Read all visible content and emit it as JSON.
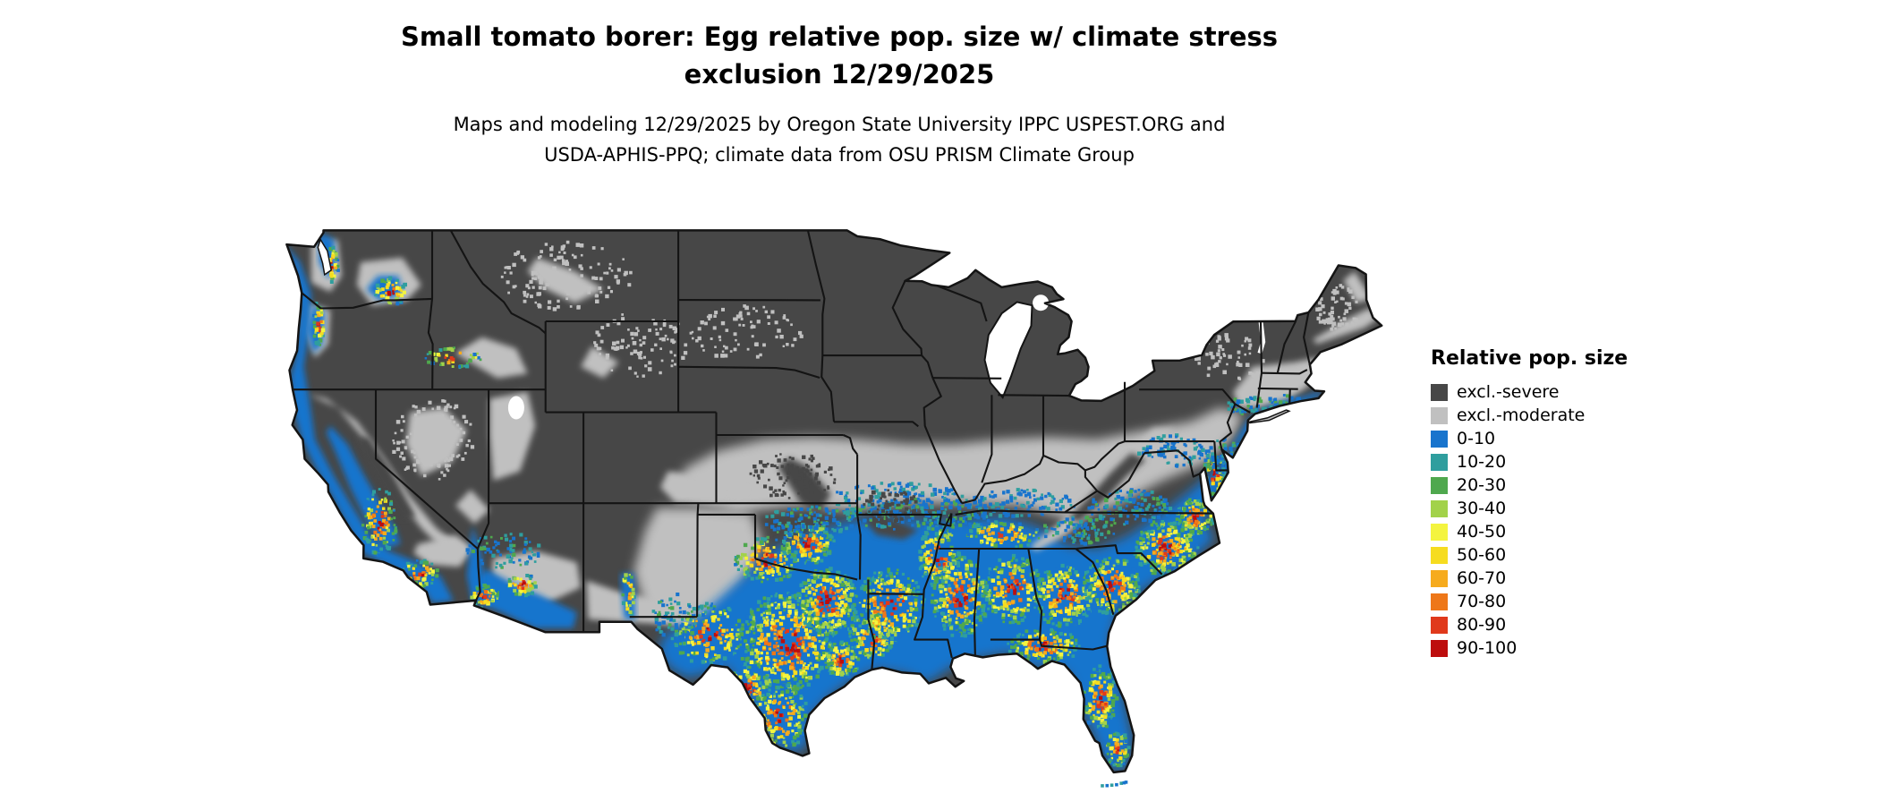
{
  "title": {
    "line1": "Small tomato borer: Egg relative pop. size w/ climate stress",
    "line2": "exclusion 12/29/2025"
  },
  "subtitle": {
    "line1": "Maps and modeling 12/29/2025 by Oregon State University IPPC USPEST.ORG and",
    "line2": "USDA-APHIS-PPQ; climate data from OSU PRISM Climate Group"
  },
  "legend": {
    "title": "Relative pop. size",
    "items": [
      {
        "label": "excl.-severe",
        "color": "#474747"
      },
      {
        "label": "excl.-moderate",
        "color": "#c0c0c0"
      },
      {
        "label": "0-10",
        "color": "#1874cd"
      },
      {
        "label": "10-20",
        "color": "#2f9e9e"
      },
      {
        "label": "20-30",
        "color": "#4fa84e"
      },
      {
        "label": "30-40",
        "color": "#a2d24a"
      },
      {
        "label": "40-50",
        "color": "#f4f43f"
      },
      {
        "label": "50-60",
        "color": "#f6dc20"
      },
      {
        "label": "60-70",
        "color": "#f6ab1d"
      },
      {
        "label": "70-80",
        "color": "#ee7718"
      },
      {
        "label": "80-90",
        "color": "#e0391b"
      },
      {
        "label": "90-100",
        "color": "#bd0d0d"
      }
    ]
  },
  "map": {
    "area": "Continental United States"
  }
}
